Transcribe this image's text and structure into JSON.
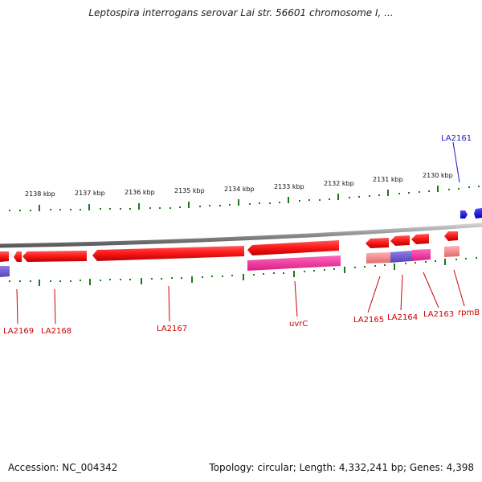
{
  "title": "Leptospira interrogans serovar Lai str. 56601 chromosome I, ...",
  "footer": {
    "accession": "Accession: NC_004342",
    "summary": "Topology: circular; Length: 4,332,241 bp; Genes: 4,398"
  },
  "colors": {
    "gene_red": "#ff1111",
    "gene_pink": "#ff3399",
    "gene_purple": "#6f5fd6",
    "gene_salmon": "#ff8f8f",
    "gene_blue": "#1a1aff",
    "tick_green": "#1a7a1a",
    "backbone": "#8c8c8c",
    "label_red": "#cc0000",
    "label_blue": "#1a1acc"
  },
  "scale": {
    "unit": "kbp",
    "ticks": [
      "2138 kbp",
      "2137 kbp",
      "2136 kbp",
      "2135 kbp",
      "2134 kbp",
      "2133 kbp",
      "2132 kbp",
      "2131 kbp",
      "2130 kbp"
    ]
  },
  "genes": [
    {
      "label": "LA2161",
      "strand": "forward",
      "color": "gene_blue"
    },
    {
      "label": "rpmB",
      "strand": "reverse",
      "color": "gene_red"
    },
    {
      "label": "LA2163",
      "strand": "reverse",
      "color": "gene_red"
    },
    {
      "label": "LA2164",
      "strand": "reverse",
      "color": "gene_red"
    },
    {
      "label": "LA2165",
      "strand": "reverse",
      "color": "gene_red"
    },
    {
      "label": "uvrC",
      "strand": "reverse",
      "color": "gene_red"
    },
    {
      "label": "LA2167",
      "strand": "reverse",
      "color": "gene_red"
    },
    {
      "label": "LA2168",
      "strand": "reverse",
      "color": "gene_red"
    },
    {
      "label": "LA2169",
      "strand": "reverse",
      "color": "gene_red"
    }
  ]
}
